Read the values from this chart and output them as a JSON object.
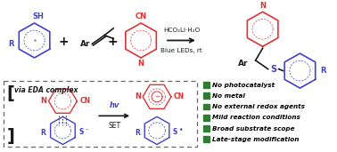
{
  "background_color": "#ffffff",
  "fig_width": 3.78,
  "fig_height": 1.71,
  "dpi": 100,
  "conditions_line1": "HCO₂Li·H₂O",
  "conditions_line2": "Blue LEDs, rt",
  "bullet_items": [
    "No photocatalyst",
    "No metal",
    "No external redox agents",
    "Mild reaction conditions",
    "Broad substrate scope",
    "Late-stage modification"
  ],
  "bullet_color": "#2e7d32",
  "bullet_text_color": "#000000",
  "blue_color": "#4040cc",
  "red_color": "#dd3333",
  "black_color": "#1a1a1a",
  "green_color": "#2e7d32"
}
